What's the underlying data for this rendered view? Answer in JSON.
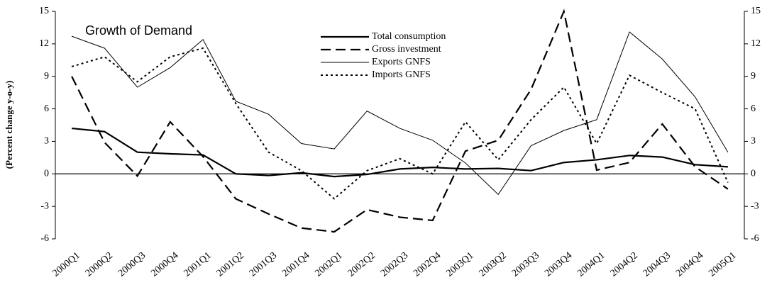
{
  "chart_data": {
    "type": "line",
    "annotation": "Growth of Demand",
    "ylabel": "(Percent change y-o-y)",
    "categories": [
      "2000Q1",
      "2000Q2",
      "2000Q3",
      "2000Q4",
      "2001Q1",
      "2001Q2",
      "2001Q3",
      "2001Q4",
      "2002Q1",
      "2002Q2",
      "2002Q3",
      "2002Q4",
      "2003Q1",
      "2003Q2",
      "2003Q3",
      "2003Q4",
      "2004Q1",
      "2004Q2",
      "2004Q3",
      "2004Q4",
      "2005Q1"
    ],
    "series": [
      {
        "name": "Total consumption",
        "color": "#000000",
        "line_style": "solid-thick",
        "values": [
          4.2,
          3.9,
          2.0,
          1.85,
          1.75,
          0,
          -0.15,
          0.1,
          -0.25,
          -0.05,
          0.45,
          0.6,
          0.45,
          0.5,
          0.3,
          1.05,
          1.3,
          1.7,
          1.55,
          0.85,
          0.65
        ]
      },
      {
        "name": "Gross investment",
        "color": "#000000",
        "line_style": "dashed",
        "values": [
          9.0,
          2.9,
          -0.2,
          4.8,
          1.6,
          -2.3,
          -3.7,
          -5.0,
          -5.35,
          -3.3,
          -4.0,
          -4.3,
          2.1,
          3.1,
          7.8,
          15,
          0.35,
          1.05,
          4.6,
          0.65,
          -1.4
        ]
      },
      {
        "name": "Exports GNFS",
        "color": "#000000",
        "line_style": "solid-thin",
        "values": [
          12.7,
          11.6,
          8.0,
          9.8,
          12.4,
          6.7,
          5.5,
          2.8,
          2.3,
          5.8,
          4.2,
          3.1,
          1.0,
          -1.9,
          2.6,
          4.0,
          5.0,
          13.1,
          10.6,
          7.1,
          2.0
        ]
      },
      {
        "name": "Imports GNFS",
        "color": "#000000",
        "line_style": "dotted",
        "values": [
          9.9,
          10.8,
          8.5,
          10.8,
          11.6,
          6.5,
          2.0,
          0.3,
          -2.3,
          0.3,
          1.4,
          0.0,
          4.8,
          1.3,
          5.0,
          8.0,
          2.8,
          9.1,
          7.5,
          6.0,
          -0.8
        ]
      }
    ],
    "ylim": [
      -6,
      15
    ],
    "yticks": [
      15,
      12,
      9,
      6,
      3,
      0,
      -3,
      -6
    ],
    "y2lim": [
      -6,
      15
    ],
    "y2ticks": [
      15,
      12,
      9,
      6,
      3,
      0,
      -3,
      -6
    ],
    "grid": false,
    "legend": "top"
  }
}
